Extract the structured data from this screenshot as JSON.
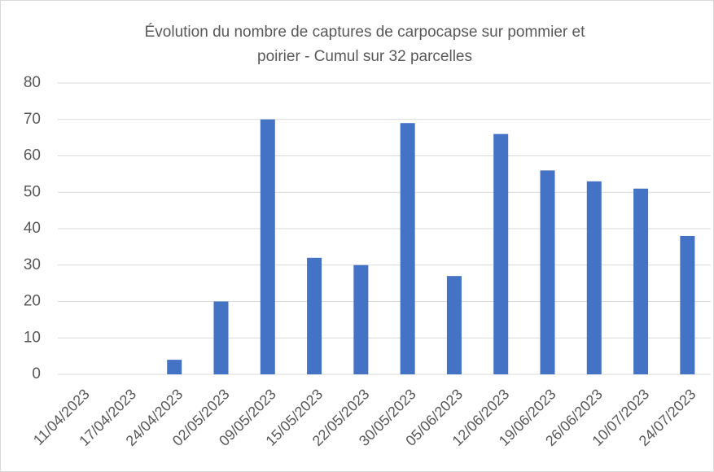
{
  "chart_data": {
    "type": "bar",
    "title": [
      "Évolution du nombre de captures de carpocapse sur pommier et",
      "poirier - Cumul sur 32 parcelles"
    ],
    "categories": [
      "11/04/2023",
      "17/04/2023",
      "24/04/2023",
      "02/05/2023",
      "09/05/2023",
      "15/05/2023",
      "22/05/2023",
      "30/05/2023",
      "05/06/2023",
      "12/06/2023",
      "19/06/2023",
      "26/06/2023",
      "10/07/2023",
      "24/07/2023"
    ],
    "values": [
      0,
      0,
      4,
      20,
      70,
      32,
      30,
      69,
      27,
      66,
      56,
      53,
      51,
      38
    ],
    "color": "#4472c4",
    "ylim": [
      0,
      80
    ],
    "yticks": [
      0,
      10,
      20,
      30,
      40,
      50,
      60,
      70,
      80
    ],
    "grid": true
  }
}
